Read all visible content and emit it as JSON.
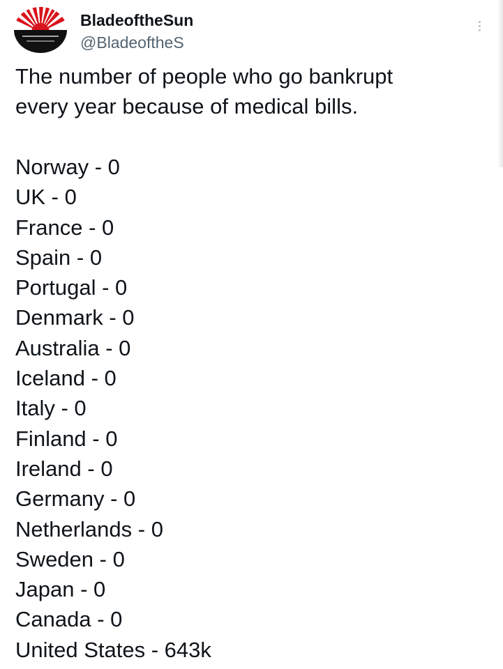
{
  "user": {
    "display_name": "BladeoftheSun",
    "handle": "@BladeoftheS"
  },
  "tweet": {
    "text_lines": [
      "The number of people who go bankrupt",
      "every year because of medical bills."
    ],
    "countries": [
      "Norway - 0",
      "UK - 0",
      "France - 0",
      "Spain - 0",
      "Portugal - 0",
      "Denmark - 0",
      "Australia - 0",
      "Iceland - 0",
      "Italy - 0",
      "Finland - 0",
      "Ireland - 0",
      "Germany - 0",
      "Netherlands - 0",
      "Sweden - 0",
      "Japan - 0",
      "Canada - 0",
      "United States - 643k"
    ]
  },
  "icons": {
    "avatar": "rising-sun-logo",
    "more": "more-options-icon"
  },
  "colors": {
    "text": "#0f1419",
    "secondary": "#536471",
    "avatar_red": "#d8141c",
    "avatar_black": "#111111"
  }
}
